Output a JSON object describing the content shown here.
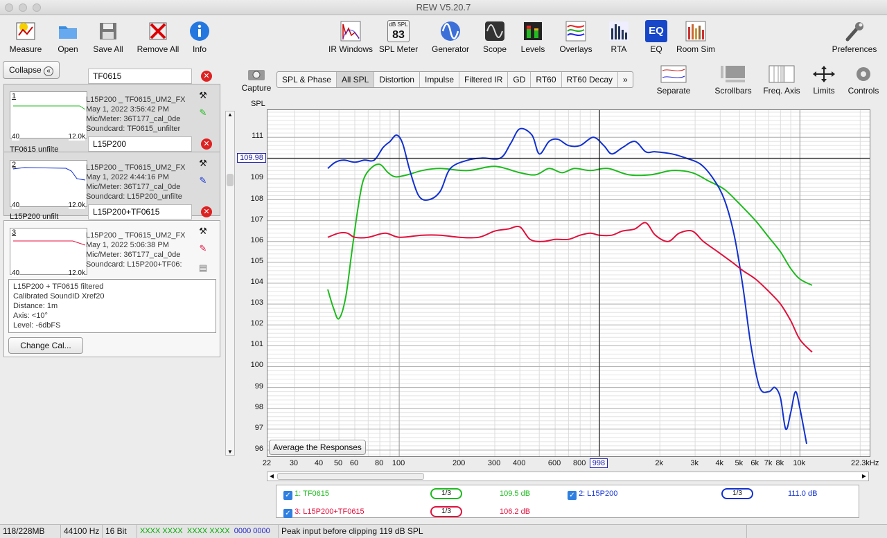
{
  "window": {
    "title": "REW V5.20.7"
  },
  "toolbar_left": [
    {
      "label": "Measure",
      "icon": "measure-icon"
    },
    {
      "label": "Open",
      "icon": "folder-icon"
    },
    {
      "label": "Save All",
      "icon": "save-icon"
    },
    {
      "label": "Remove All",
      "icon": "remove-icon"
    },
    {
      "label": "Info",
      "icon": "info-icon"
    }
  ],
  "toolbar_center": [
    {
      "label": "IR Windows"
    },
    {
      "label": "SPL Meter",
      "display_top": "dB SPL",
      "display_value": "83"
    },
    {
      "label": "Generator"
    },
    {
      "label": "Scope"
    },
    {
      "label": "Levels"
    },
    {
      "label": "Overlays"
    },
    {
      "label": "RTA"
    },
    {
      "label": "EQ",
      "icon_text": "EQ"
    },
    {
      "label": "Room Sim"
    }
  ],
  "toolbar_right": {
    "label": "Preferences"
  },
  "graph_tools": [
    {
      "label": "Separate"
    },
    {
      "label": "Scrollbars"
    },
    {
      "label": "Freq. Axis"
    },
    {
      "label": "Limits"
    },
    {
      "label": "Controls"
    }
  ],
  "capture": {
    "label": "Capture"
  },
  "collapse": {
    "label": "Collapse"
  },
  "tabs": [
    {
      "label": "SPL & Phase"
    },
    {
      "label": "All SPL",
      "selected": true
    },
    {
      "label": "Distortion"
    },
    {
      "label": "Impulse"
    },
    {
      "label": "Filtered IR"
    },
    {
      "label": "GD"
    },
    {
      "label": "RT60"
    },
    {
      "label": "RT60 Decay"
    },
    {
      "label": "»"
    }
  ],
  "measurements": [
    {
      "num": "1",
      "name": "TF0615",
      "line1": "L15P200 _ TF0615_UM2_FX",
      "line2": "May 1, 2022 3:56:42 PM",
      "line3": "Mic/Meter: 36T177_cal_0de",
      "line4": "Soundcard: TF0615_unfilter",
      "tab_label": "TF0615 unfilte",
      "thumb_lo": "40",
      "thumb_hi": "12.0k",
      "color": "#1dba1d"
    },
    {
      "num": "2",
      "name": "L15P200",
      "line1": "L15P200 _ TF0615_UM2_FX",
      "line2": "May 1, 2022 4:44:16 PM",
      "line3": "Mic/Meter: 36T177_cal_0de",
      "line4": "Soundcard: L15P200_unfilte",
      "tab_label": "L15P200 unfilt",
      "thumb_lo": "40",
      "thumb_hi": "12.0k",
      "color": "#1030d0"
    },
    {
      "num": "3",
      "name": "L15P200+TF0615",
      "line1": "L15P200 _ TF0615_UM2_FX",
      "line2": "May 1, 2022 5:06:38 PM",
      "line3": "Mic/Meter: 36T177_cal_0de",
      "line4": "Soundcard: L15P200+TF06:",
      "thumb_lo": "40",
      "thumb_hi": "12.0k",
      "color": "#e0103c"
    }
  ],
  "notes": {
    "l1": "L15P200 + TF0615 filtered",
    "l2": "Calibrated SoundID Xref20",
    "l3": "Distance: 1m",
    "l4": "Axis: <10°",
    "l5": "Level: -6dbFS"
  },
  "change_cal": {
    "label": "Change Cal..."
  },
  "avg_button": {
    "label": "Average the Responses"
  },
  "cursor": {
    "y_readout": "109.98",
    "x_readout": "998",
    "y_value": 109.98,
    "x_value": 998
  },
  "chart_data": {
    "type": "line",
    "ylabel": "SPL",
    "x_unit_label": "22.3kHz",
    "xlim": [
      22,
      22300
    ],
    "ylim": [
      95.7,
      112.3
    ],
    "x_scale": "log",
    "grid": true,
    "y_ticks": [
      96,
      97,
      98,
      99,
      100,
      101,
      102,
      103,
      104,
      105,
      106,
      107,
      108,
      109,
      110,
      111
    ],
    "x_ticks": [
      {
        "v": 22,
        "t": "22"
      },
      {
        "v": 30,
        "t": "30"
      },
      {
        "v": 40,
        "t": "40"
      },
      {
        "v": 50,
        "t": "50"
      },
      {
        "v": 60,
        "t": "60"
      },
      {
        "v": 80,
        "t": "80"
      },
      {
        "v": 100,
        "t": "100"
      },
      {
        "v": 200,
        "t": "200"
      },
      {
        "v": 300,
        "t": "300"
      },
      {
        "v": 400,
        "t": "400"
      },
      {
        "v": 600,
        "t": "600"
      },
      {
        "v": 800,
        "t": "800"
      },
      {
        "v": 2000,
        "t": "2k"
      },
      {
        "v": 3000,
        "t": "3k"
      },
      {
        "v": 4000,
        "t": "4k"
      },
      {
        "v": 5000,
        "t": "5k"
      },
      {
        "v": 6000,
        "t": "6k"
      },
      {
        "v": 7000,
        "t": "7k"
      },
      {
        "v": 8000,
        "t": "8k"
      },
      {
        "v": 10000,
        "t": "10k"
      }
    ],
    "series": [
      {
        "name": "1: TF0615",
        "color": "#1dba1d",
        "smoothing": "1/3",
        "level": "109.5 dB",
        "points": [
          [
            44,
            103.7
          ],
          [
            47,
            102.8
          ],
          [
            50,
            102.3
          ],
          [
            54,
            103.3
          ],
          [
            58,
            105.5
          ],
          [
            62,
            107.5
          ],
          [
            66,
            108.9
          ],
          [
            72,
            109.5
          ],
          [
            80,
            109.7
          ],
          [
            88,
            109.3
          ],
          [
            96,
            109.1
          ],
          [
            110,
            109.2
          ],
          [
            130,
            109.4
          ],
          [
            160,
            109.5
          ],
          [
            220,
            109.4
          ],
          [
            300,
            109.6
          ],
          [
            400,
            109.3
          ],
          [
            480,
            109.2
          ],
          [
            560,
            109.5
          ],
          [
            650,
            109.3
          ],
          [
            750,
            109.5
          ],
          [
            900,
            109.4
          ],
          [
            1100,
            109.5
          ],
          [
            1400,
            109.2
          ],
          [
            1800,
            109.2
          ],
          [
            2300,
            109.4
          ],
          [
            2900,
            109.3
          ],
          [
            3500,
            108.9
          ],
          [
            4200,
            108.5
          ],
          [
            5000,
            107.8
          ],
          [
            6000,
            107.0
          ],
          [
            7000,
            106.2
          ],
          [
            8000,
            105.5
          ],
          [
            9000,
            104.7
          ],
          [
            10000,
            104.2
          ],
          [
            11500,
            103.9
          ]
        ]
      },
      {
        "name": "2: L15P200",
        "color": "#1030d0",
        "smoothing": "1/3",
        "level": "111.0 dB",
        "points": [
          [
            44,
            109.5
          ],
          [
            48,
            109.8
          ],
          [
            53,
            109.9
          ],
          [
            60,
            109.8
          ],
          [
            67,
            109.9
          ],
          [
            75,
            109.9
          ],
          [
            83,
            110.5
          ],
          [
            90,
            110.8
          ],
          [
            97,
            111.1
          ],
          [
            104,
            110.7
          ],
          [
            113,
            109.4
          ],
          [
            125,
            108.2
          ],
          [
            140,
            108.0
          ],
          [
            160,
            108.4
          ],
          [
            180,
            109.5
          ],
          [
            220,
            109.9
          ],
          [
            260,
            110.0
          ],
          [
            320,
            110.0
          ],
          [
            360,
            110.7
          ],
          [
            400,
            111.4
          ],
          [
            460,
            111.1
          ],
          [
            500,
            110.2
          ],
          [
            560,
            110.8
          ],
          [
            620,
            110.9
          ],
          [
            700,
            110.6
          ],
          [
            800,
            110.6
          ],
          [
            930,
            111.0
          ],
          [
            1050,
            110.6
          ],
          [
            1150,
            110.2
          ],
          [
            1300,
            110.5
          ],
          [
            1500,
            110.8
          ],
          [
            1700,
            110.3
          ],
          [
            1900,
            110.3
          ],
          [
            2300,
            110.2
          ],
          [
            2700,
            110.0
          ],
          [
            3200,
            109.7
          ],
          [
            3700,
            109.0
          ],
          [
            4200,
            108.0
          ],
          [
            4700,
            106.3
          ],
          [
            5200,
            103.8
          ],
          [
            5700,
            101.0
          ],
          [
            6300,
            99.0
          ],
          [
            7000,
            98.8
          ],
          [
            7500,
            99.0
          ],
          [
            8000,
            98.5
          ],
          [
            8500,
            97.0
          ],
          [
            9000,
            97.8
          ],
          [
            9500,
            98.8
          ],
          [
            10000,
            98.0
          ],
          [
            10800,
            96.3
          ]
        ]
      },
      {
        "name": "3: L15P200+TF0615",
        "color": "#e0103c",
        "smoothing": "1/3",
        "level": "106.2 dB",
        "points": [
          [
            44,
            106.2
          ],
          [
            50,
            106.4
          ],
          [
            55,
            106.4
          ],
          [
            60,
            106.2
          ],
          [
            70,
            106.2
          ],
          [
            85,
            106.4
          ],
          [
            100,
            106.2
          ],
          [
            130,
            106.3
          ],
          [
            160,
            106.3
          ],
          [
            200,
            106.2
          ],
          [
            250,
            106.2
          ],
          [
            300,
            106.5
          ],
          [
            350,
            106.6
          ],
          [
            400,
            106.7
          ],
          [
            450,
            106.1
          ],
          [
            520,
            106.0
          ],
          [
            600,
            106.1
          ],
          [
            700,
            106.1
          ],
          [
            800,
            106.3
          ],
          [
            900,
            106.4
          ],
          [
            1000,
            106.3
          ],
          [
            1150,
            106.3
          ],
          [
            1300,
            106.5
          ],
          [
            1500,
            106.6
          ],
          [
            1700,
            106.9
          ],
          [
            1900,
            106.3
          ],
          [
            2200,
            106.0
          ],
          [
            2500,
            106.4
          ],
          [
            2900,
            106.5
          ],
          [
            3300,
            106.0
          ],
          [
            3900,
            105.5
          ],
          [
            4600,
            105.0
          ],
          [
            5200,
            104.6
          ],
          [
            6000,
            104.2
          ],
          [
            7000,
            103.6
          ],
          [
            8000,
            103.0
          ],
          [
            9000,
            102.2
          ],
          [
            10000,
            101.3
          ],
          [
            11500,
            100.7
          ]
        ]
      }
    ]
  },
  "status": {
    "memory": "118/228MB",
    "rate": "44100 Hz",
    "bits": "16 Bit",
    "l1": "XXXX XXXX",
    "l2": "XXXX XXXX",
    "l3": "0000 0000",
    "peak": "Peak input before clipping 119 dB SPL"
  }
}
